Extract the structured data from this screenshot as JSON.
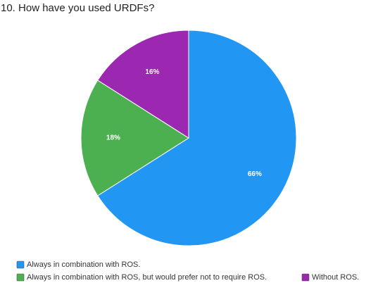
{
  "chart_data": {
    "type": "pie",
    "title": "10. How have you used URDFs?",
    "categories": [
      "Always in combination with ROS.",
      "Always in combination with ROS, but would prefer not to require ROS.",
      "Without ROS."
    ],
    "values": [
      66,
      18,
      16
    ],
    "value_labels": [
      "66%",
      "18%",
      "16%"
    ],
    "colors": [
      "#2196f3",
      "#4caf50",
      "#9c27b0"
    ]
  }
}
